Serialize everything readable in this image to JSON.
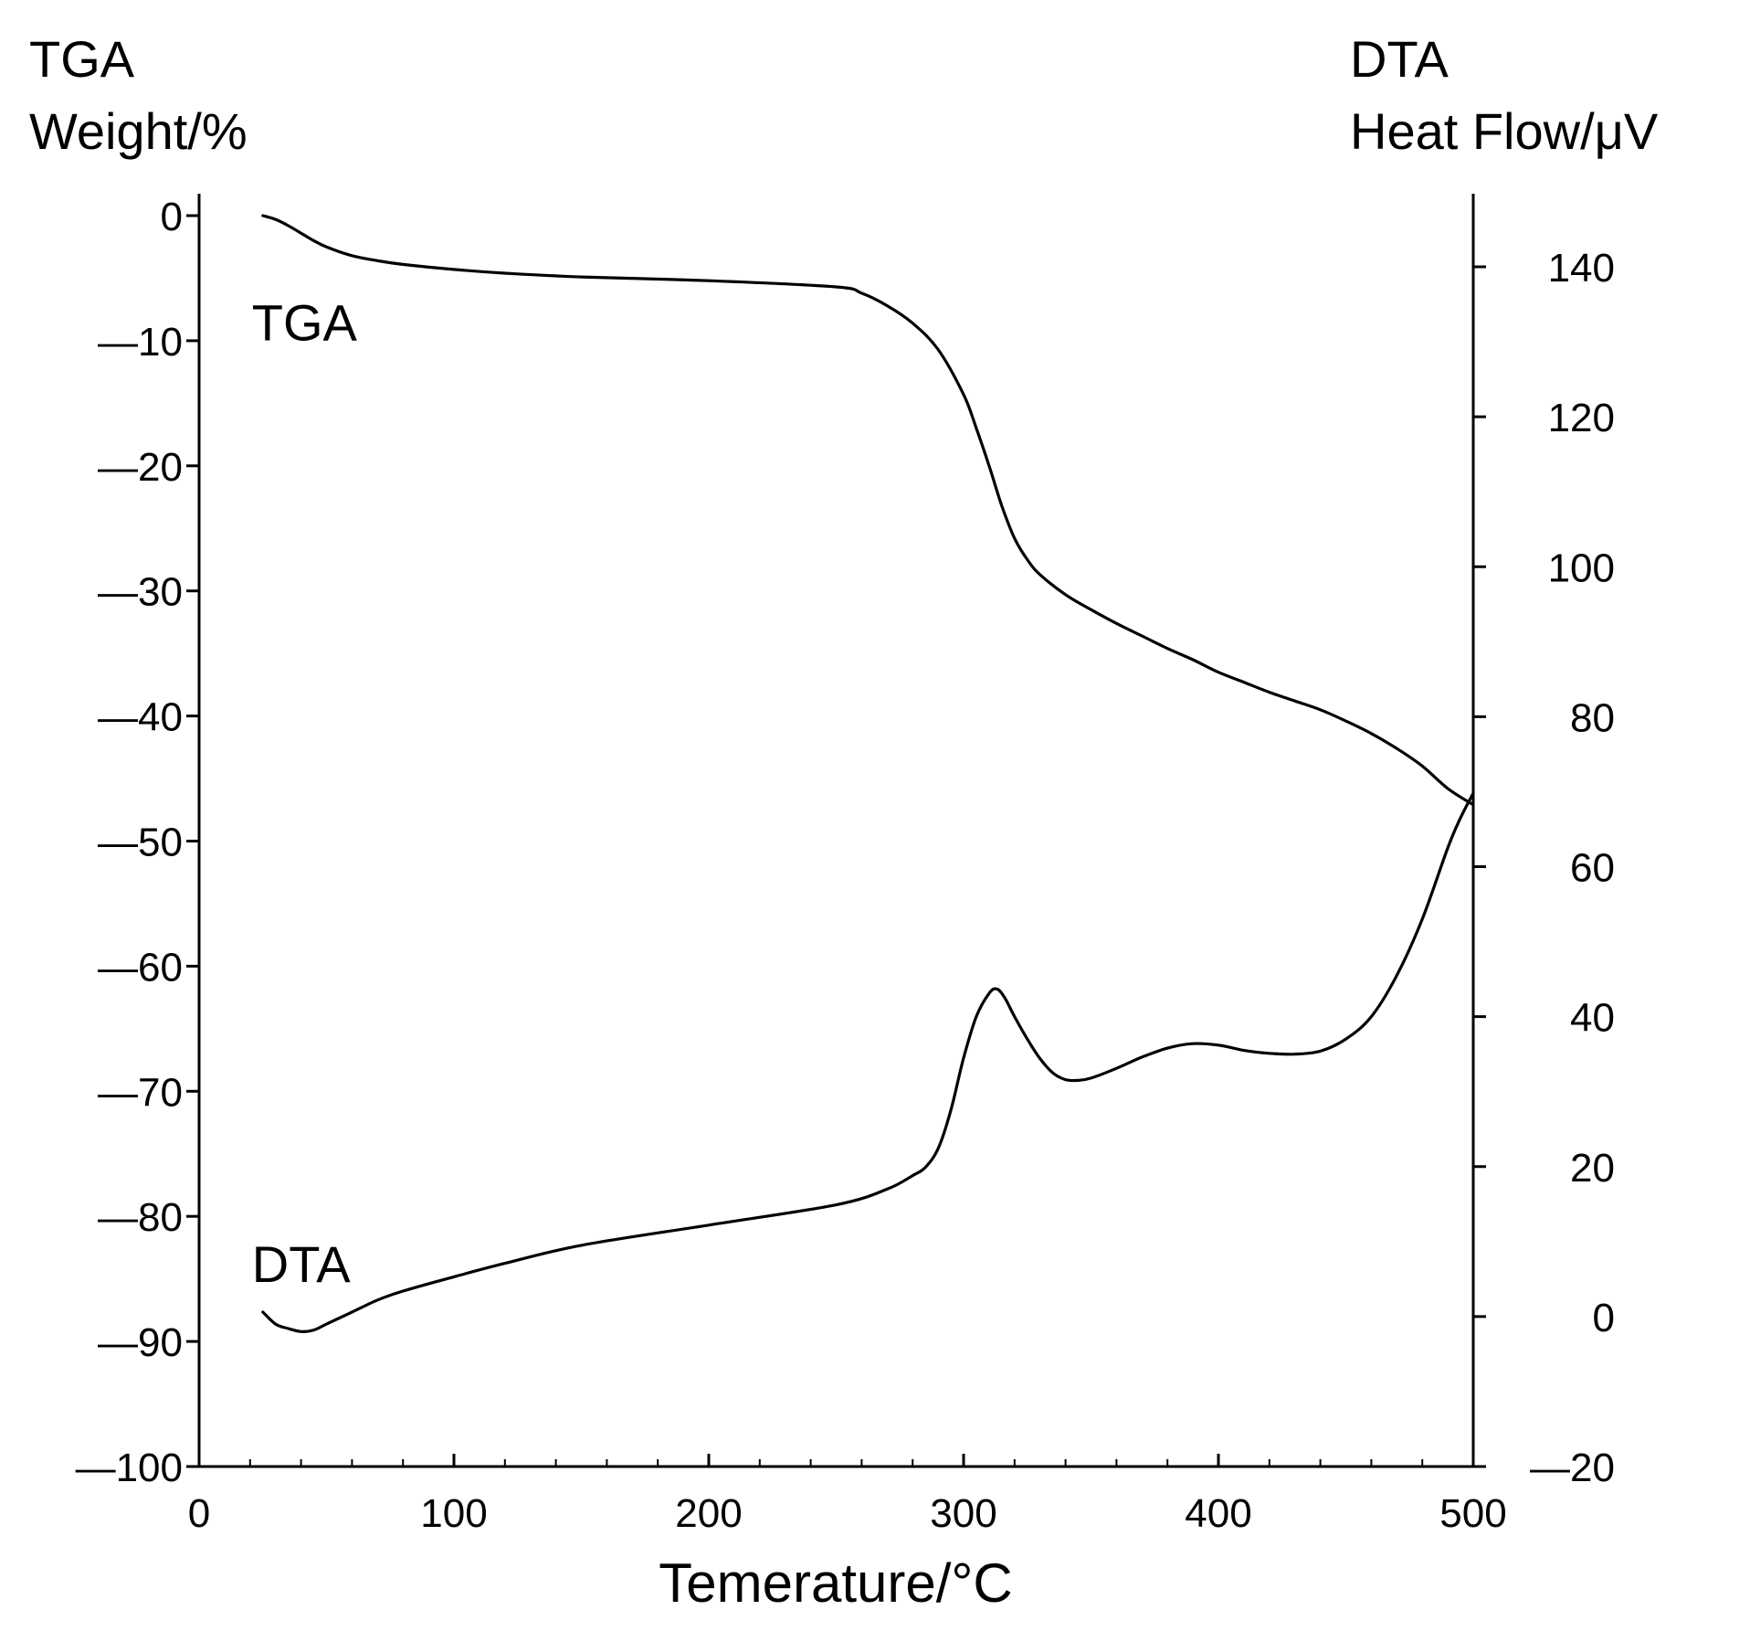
{
  "chart_data": {
    "type": "line",
    "xlabel": "Temerature/°C",
    "xlim": [
      0,
      500
    ],
    "xticks": [
      0,
      100,
      200,
      300,
      400,
      500
    ],
    "left_axis": {
      "title_line1": "TGA",
      "title_line2": "Weight/%",
      "ylim": [
        -100,
        0
      ],
      "ticks": [
        0,
        -10,
        -20,
        -30,
        -40,
        -50,
        -60,
        -70,
        -80,
        -90,
        -100
      ],
      "tick_labels": [
        "0",
        "—10",
        "—20",
        "—30",
        "—40",
        "—50",
        "—60",
        "—70",
        "—80",
        "—90",
        "—100"
      ]
    },
    "right_axis": {
      "title_line1": "DTA",
      "title_line2": "Heat Flow/μV",
      "ylim": [
        -20,
        147
      ],
      "ticks": [
        140,
        120,
        100,
        80,
        60,
        40,
        20,
        0,
        -20
      ],
      "tick_labels": [
        "140",
        "120",
        "100",
        "80",
        "60",
        "40",
        "20",
        "0",
        "—20"
      ]
    },
    "grid": false,
    "legend": "none",
    "series": [
      {
        "name": "TGA",
        "axis": "left",
        "x": [
          25,
          30,
          35,
          40,
          45,
          50,
          60,
          70,
          80,
          100,
          120,
          150,
          200,
          250,
          260,
          270,
          280,
          290,
          300,
          305,
          310,
          315,
          320,
          325,
          330,
          340,
          350,
          360,
          370,
          380,
          390,
          400,
          410,
          420,
          430,
          440,
          450,
          460,
          470,
          480,
          490,
          500
        ],
        "values": [
          0,
          -0.3,
          -0.8,
          -1.4,
          -2.0,
          -2.5,
          -3.2,
          -3.6,
          -3.9,
          -4.3,
          -4.6,
          -4.9,
          -5.2,
          -5.7,
          -6.2,
          -7.2,
          -8.6,
          -10.7,
          -14.3,
          -17.0,
          -20.0,
          -23.2,
          -25.8,
          -27.5,
          -28.7,
          -30.3,
          -31.5,
          -32.6,
          -33.6,
          -34.6,
          -35.5,
          -36.5,
          -37.3,
          -38.1,
          -38.8,
          -39.5,
          -40.4,
          -41.4,
          -42.6,
          -44.0,
          -45.8,
          -47.1
        ]
      },
      {
        "name": "DTA",
        "axis": "right",
        "x": [
          25,
          30,
          35,
          40,
          45,
          50,
          60,
          70,
          80,
          100,
          120,
          150,
          200,
          250,
          270,
          280,
          285,
          290,
          295,
          300,
          305,
          310,
          313,
          316,
          320,
          325,
          330,
          335,
          340,
          345,
          350,
          360,
          370,
          380,
          390,
          400,
          410,
          420,
          430,
          440,
          450,
          460,
          470,
          480,
          490,
          495,
          500
        ],
        "values": [
          0.6,
          -1.0,
          -1.6,
          -2.0,
          -1.8,
          -1.0,
          0.6,
          2.2,
          3.4,
          5.3,
          7.1,
          9.5,
          12.2,
          14.9,
          17.0,
          18.8,
          19.9,
          22.4,
          27.5,
          34.5,
          40.0,
          43.1,
          43.7,
          42.6,
          40.0,
          37.0,
          34.4,
          32.5,
          31.6,
          31.5,
          31.8,
          33.1,
          34.6,
          35.8,
          36.4,
          36.2,
          35.5,
          35.1,
          35.0,
          35.4,
          37.0,
          40.0,
          45.5,
          53.0,
          62.5,
          66.5,
          69.8
        ]
      }
    ],
    "annotations": [
      {
        "text": "TGA",
        "x": 25,
        "y": -8.5,
        "axis": "left"
      },
      {
        "text": "DTA",
        "x": 25,
        "y": -83.8,
        "axis": "left"
      }
    ]
  }
}
